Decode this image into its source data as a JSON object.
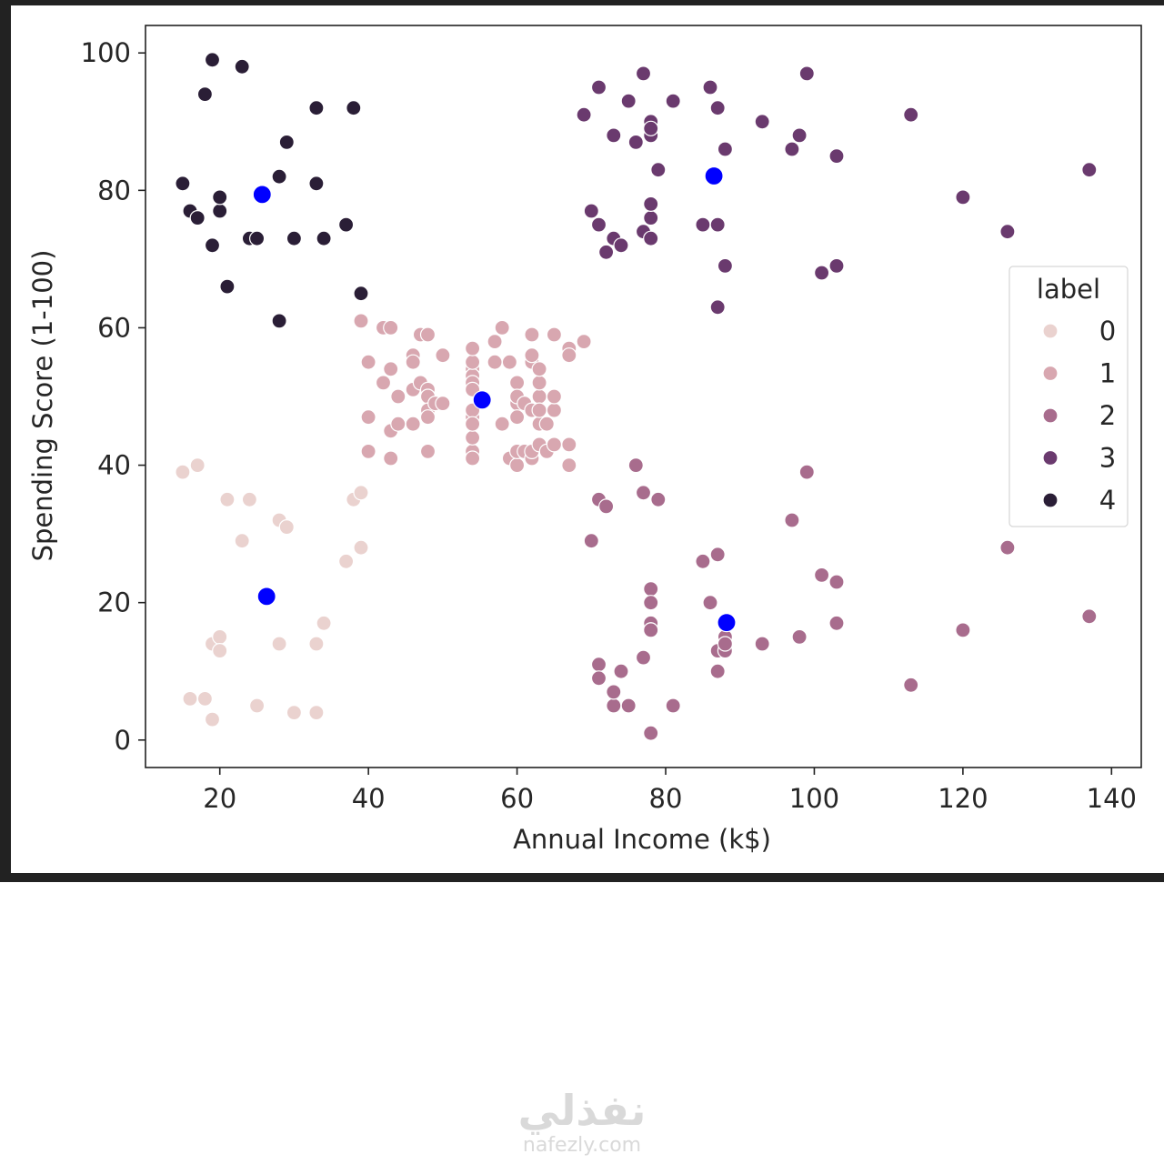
{
  "chart_data": {
    "type": "scatter",
    "xlabel": "Annual Income (k$)",
    "ylabel": "Spending Score (1-100)",
    "xlim": [
      10,
      144
    ],
    "ylim": [
      -4,
      104
    ],
    "xticks": [
      20,
      40,
      60,
      80,
      100,
      120,
      140
    ],
    "yticks": [
      0,
      20,
      40,
      60,
      80,
      100
    ],
    "grid": false,
    "legend": {
      "title": "label",
      "placement": "right",
      "entries": [
        "0",
        "1",
        "2",
        "3",
        "4"
      ]
    },
    "series": [
      {
        "name": "0",
        "color": "#ead2cf",
        "points": [
          [
            15,
            39
          ],
          [
            16,
            6
          ],
          [
            17,
            40
          ],
          [
            18,
            6
          ],
          [
            19,
            3
          ],
          [
            19,
            14
          ],
          [
            20,
            15
          ],
          [
            20,
            13
          ],
          [
            21,
            35
          ],
          [
            23,
            29
          ],
          [
            24,
            35
          ],
          [
            25,
            5
          ],
          [
            28,
            14
          ],
          [
            28,
            32
          ],
          [
            29,
            31
          ],
          [
            30,
            4
          ],
          [
            33,
            4
          ],
          [
            33,
            14
          ],
          [
            34,
            17
          ],
          [
            37,
            26
          ],
          [
            38,
            35
          ],
          [
            39,
            36
          ],
          [
            39,
            28
          ]
        ]
      },
      {
        "name": "1",
        "color": "#d8a7b0",
        "points": [
          [
            39,
            61
          ],
          [
            40,
            55
          ],
          [
            40,
            47
          ],
          [
            40,
            42
          ],
          [
            42,
            52
          ],
          [
            42,
            60
          ],
          [
            43,
            60
          ],
          [
            43,
            54
          ],
          [
            43,
            45
          ],
          [
            43,
            41
          ],
          [
            44,
            50
          ],
          [
            44,
            46
          ],
          [
            46,
            51
          ],
          [
            46,
            46
          ],
          [
            46,
            56
          ],
          [
            46,
            55
          ],
          [
            47,
            52
          ],
          [
            47,
            59
          ],
          [
            48,
            51
          ],
          [
            48,
            59
          ],
          [
            48,
            50
          ],
          [
            48,
            48
          ],
          [
            48,
            47
          ],
          [
            48,
            42
          ],
          [
            49,
            49
          ],
          [
            50,
            56
          ],
          [
            50,
            49
          ],
          [
            54,
            47
          ],
          [
            54,
            54
          ],
          [
            54,
            53
          ],
          [
            54,
            48
          ],
          [
            54,
            52
          ],
          [
            54,
            42
          ],
          [
            54,
            51
          ],
          [
            54,
            55
          ],
          [
            54,
            41
          ],
          [
            54,
            44
          ],
          [
            54,
            57
          ],
          [
            54,
            46
          ],
          [
            57,
            58
          ],
          [
            57,
            55
          ],
          [
            58,
            60
          ],
          [
            58,
            46
          ],
          [
            59,
            55
          ],
          [
            59,
            41
          ],
          [
            60,
            49
          ],
          [
            60,
            40
          ],
          [
            60,
            42
          ],
          [
            60,
            52
          ],
          [
            60,
            47
          ],
          [
            60,
            50
          ],
          [
            61,
            42
          ],
          [
            61,
            49
          ],
          [
            62,
            41
          ],
          [
            62,
            48
          ],
          [
            62,
            59
          ],
          [
            62,
            55
          ],
          [
            62,
            56
          ],
          [
            62,
            42
          ],
          [
            63,
            50
          ],
          [
            63,
            46
          ],
          [
            63,
            43
          ],
          [
            63,
            48
          ],
          [
            63,
            52
          ],
          [
            63,
            54
          ],
          [
            64,
            42
          ],
          [
            64,
            46
          ],
          [
            65,
            48
          ],
          [
            65,
            50
          ],
          [
            65,
            43
          ],
          [
            65,
            59
          ],
          [
            67,
            43
          ],
          [
            67,
            57
          ],
          [
            67,
            56
          ],
          [
            67,
            40
          ],
          [
            69,
            58
          ]
        ]
      },
      {
        "name": "2",
        "color": "#a86c8d",
        "points": [
          [
            70,
            29
          ],
          [
            71,
            35
          ],
          [
            71,
            11
          ],
          [
            71,
            9
          ],
          [
            72,
            34
          ],
          [
            73,
            5
          ],
          [
            73,
            7
          ],
          [
            74,
            10
          ],
          [
            75,
            5
          ],
          [
            76,
            40
          ],
          [
            77,
            12
          ],
          [
            77,
            36
          ],
          [
            78,
            22
          ],
          [
            78,
            17
          ],
          [
            78,
            20
          ],
          [
            78,
            16
          ],
          [
            78,
            1
          ],
          [
            78,
            16
          ],
          [
            79,
            35
          ],
          [
            81,
            5
          ],
          [
            85,
            26
          ],
          [
            86,
            20
          ],
          [
            87,
            27
          ],
          [
            87,
            13
          ],
          [
            87,
            10
          ],
          [
            88,
            13
          ],
          [
            88,
            15
          ],
          [
            88,
            14
          ],
          [
            93,
            14
          ],
          [
            97,
            32
          ],
          [
            98,
            15
          ],
          [
            99,
            39
          ],
          [
            101,
            24
          ],
          [
            103,
            17
          ],
          [
            103,
            23
          ],
          [
            113,
            8
          ],
          [
            120,
            16
          ],
          [
            126,
            28
          ],
          [
            137,
            18
          ]
        ]
      },
      {
        "name": "3",
        "color": "#6a3a6e",
        "points": [
          [
            69,
            91
          ],
          [
            70,
            77
          ],
          [
            71,
            95
          ],
          [
            71,
            75
          ],
          [
            72,
            71
          ],
          [
            73,
            88
          ],
          [
            73,
            73
          ],
          [
            74,
            72
          ],
          [
            75,
            93
          ],
          [
            76,
            87
          ],
          [
            77,
            97
          ],
          [
            77,
            74
          ],
          [
            78,
            90
          ],
          [
            78,
            88
          ],
          [
            78,
            76
          ],
          [
            78,
            89
          ],
          [
            78,
            78
          ],
          [
            78,
            73
          ],
          [
            79,
            83
          ],
          [
            81,
            93
          ],
          [
            85,
            75
          ],
          [
            86,
            95
          ],
          [
            87,
            63
          ],
          [
            87,
            75
          ],
          [
            87,
            92
          ],
          [
            88,
            86
          ],
          [
            88,
            69
          ],
          [
            93,
            90
          ],
          [
            97,
            86
          ],
          [
            98,
            88
          ],
          [
            99,
            97
          ],
          [
            101,
            68
          ],
          [
            103,
            85
          ],
          [
            103,
            69
          ],
          [
            113,
            91
          ],
          [
            120,
            79
          ],
          [
            126,
            74
          ],
          [
            137,
            83
          ]
        ]
      },
      {
        "name": "4",
        "color": "#2a1e36",
        "points": [
          [
            15,
            81
          ],
          [
            16,
            77
          ],
          [
            17,
            76
          ],
          [
            18,
            94
          ],
          [
            19,
            72
          ],
          [
            19,
            99
          ],
          [
            20,
            77
          ],
          [
            20,
            79
          ],
          [
            21,
            66
          ],
          [
            23,
            98
          ],
          [
            24,
            73
          ],
          [
            25,
            73
          ],
          [
            28,
            82
          ],
          [
            28,
            61
          ],
          [
            29,
            87
          ],
          [
            30,
            73
          ],
          [
            33,
            92
          ],
          [
            33,
            81
          ],
          [
            34,
            73
          ],
          [
            37,
            75
          ],
          [
            38,
            92
          ],
          [
            39,
            65
          ]
        ]
      }
    ],
    "centroids": {
      "color": "#0000ff",
      "points": [
        [
          25.7,
          79.4
        ],
        [
          26.3,
          20.9
        ],
        [
          55.3,
          49.5
        ],
        [
          86.5,
          82.1
        ],
        [
          88.2,
          17.1
        ]
      ]
    }
  },
  "watermark": {
    "arabic": "نفذلي",
    "latin": "nafezly.com"
  }
}
